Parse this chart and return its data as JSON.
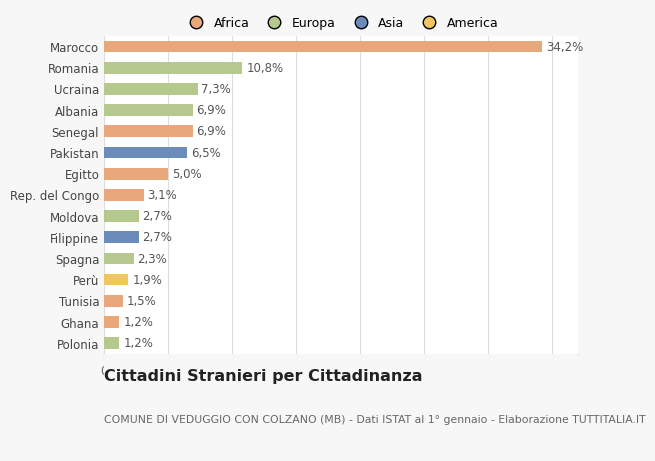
{
  "countries": [
    "Marocco",
    "Romania",
    "Ucraina",
    "Albania",
    "Senegal",
    "Pakistan",
    "Egitto",
    "Rep. del Congo",
    "Moldova",
    "Filippine",
    "Spagna",
    "Perù",
    "Tunisia",
    "Ghana",
    "Polonia"
  ],
  "values": [
    34.2,
    10.8,
    7.3,
    6.9,
    6.9,
    6.5,
    5.0,
    3.1,
    2.7,
    2.7,
    2.3,
    1.9,
    1.5,
    1.2,
    1.2
  ],
  "labels": [
    "34,2%",
    "10,8%",
    "7,3%",
    "6,9%",
    "6,9%",
    "6,5%",
    "5,0%",
    "3,1%",
    "2,7%",
    "2,7%",
    "2,3%",
    "1,9%",
    "1,5%",
    "1,2%",
    "1,2%"
  ],
  "colors": [
    "#e8a87c",
    "#b5c98e",
    "#b5c98e",
    "#b5c98e",
    "#e8a87c",
    "#6b8cba",
    "#e8a87c",
    "#e8a87c",
    "#b5c98e",
    "#6b8cba",
    "#b5c98e",
    "#f0c75e",
    "#e8a87c",
    "#e8a87c",
    "#b5c98e"
  ],
  "legend_labels": [
    "Africa",
    "Europa",
    "Asia",
    "America"
  ],
  "legend_colors": [
    "#e8a87c",
    "#b5c98e",
    "#6b8cba",
    "#f0c75e"
  ],
  "title": "Cittadini Stranieri per Cittadinanza",
  "subtitle": "COMUNE DI VEDUGGIO CON COLZANO (MB) - Dati ISTAT al 1° gennaio - Elaborazione TUTTITALIA.IT",
  "xlim": [
    0,
    37
  ],
  "xticks": [
    0,
    5,
    10,
    15,
    20,
    25,
    30,
    35
  ],
  "bg_color": "#f7f7f7",
  "plot_bg_color": "#ffffff",
  "grid_color": "#dddddd",
  "bar_height": 0.55,
  "label_fontsize": 8.5,
  "title_fontsize": 11.5,
  "subtitle_fontsize": 7.8,
  "legend_fontsize": 9
}
